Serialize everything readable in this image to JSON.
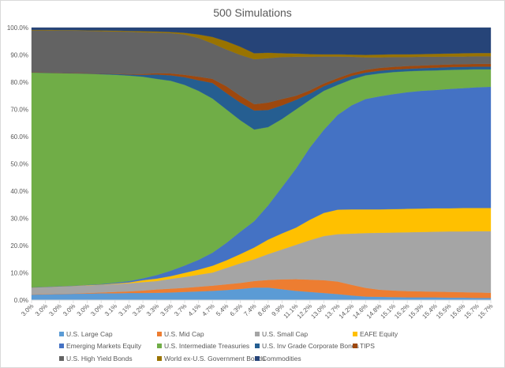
{
  "chart_data": {
    "type": "area",
    "stacking": "percent",
    "title": "500 Simulations",
    "xlabel": "",
    "ylabel": "",
    "ylim": [
      0,
      100
    ],
    "yticks": [
      "0.0%",
      "10.0%",
      "20.0%",
      "30.0%",
      "40.0%",
      "50.0%",
      "60.0%",
      "70.0%",
      "80.0%",
      "90.0%",
      "100.0%"
    ],
    "grid": true,
    "legend_position": "bottom",
    "categories": [
      "3.0%",
      "3.0%",
      "3.0%",
      "3.0%",
      "3.0%",
      "3.0%",
      "3.1%",
      "3.1%",
      "3.2%",
      "3.3%",
      "3.5%",
      "3.7%",
      "4.1%",
      "4.7%",
      "5.4%",
      "6.3%",
      "7.4%",
      "8.6%",
      "9.9%",
      "11.1%",
      "12.2%",
      "13.0%",
      "13.7%",
      "14.2%",
      "14.6%",
      "14.8%",
      "15.1%",
      "15.2%",
      "15.3%",
      "15.4%",
      "15.5%",
      "15.6%",
      "15.7%",
      "15.7%"
    ],
    "series": [
      {
        "name": "U.S. Large Cap",
        "color": "#5B9BD5",
        "values": [
          2.0,
          2.1,
          2.2,
          2.3,
          2.4,
          2.5,
          2.5,
          2.6,
          2.6,
          2.7,
          2.8,
          3.0,
          3.2,
          3.4,
          3.7,
          4.1,
          4.6,
          4.6,
          4.0,
          3.4,
          3.0,
          2.6,
          2.2,
          1.7,
          1.3,
          1.2,
          1.1,
          1.0,
          1.0,
          1.0,
          0.9,
          0.9,
          0.8,
          0.8
        ]
      },
      {
        "name": "U.S. Mid Cap",
        "color": "#ED7D31",
        "values": [
          0.1,
          0.1,
          0.1,
          0.1,
          0.2,
          0.3,
          0.5,
          0.6,
          0.9,
          1.2,
          1.4,
          1.5,
          1.7,
          1.9,
          2.1,
          2.2,
          2.4,
          2.8,
          3.6,
          4.3,
          4.5,
          4.7,
          4.6,
          3.9,
          3.2,
          2.6,
          2.4,
          2.3,
          2.2,
          2.1,
          2.1,
          2.0,
          2.0,
          1.9
        ]
      },
      {
        "name": "U.S. Small Cap",
        "color": "#A5A5A5",
        "values": [
          2.5,
          2.6,
          2.7,
          2.8,
          2.8,
          2.8,
          2.9,
          3.0,
          3.1,
          3.1,
          3.6,
          4.0,
          4.4,
          4.8,
          6.0,
          7.2,
          8.0,
          9.5,
          11.0,
          12.6,
          14.5,
          16.2,
          17.4,
          18.8,
          20.1,
          20.9,
          21.3,
          21.6,
          21.8,
          22.0,
          22.2,
          22.3,
          22.5,
          22.6
        ]
      },
      {
        "name": "EAFE Equity",
        "color": "#FFC000",
        "values": [
          0.0,
          0.0,
          0.0,
          0.0,
          0.1,
          0.1,
          0.2,
          0.3,
          0.7,
          0.9,
          1.0,
          1.5,
          1.9,
          2.5,
          2.8,
          3.4,
          4.3,
          5.3,
          5.9,
          6.3,
          7.5,
          8.5,
          9.0,
          8.9,
          8.7,
          8.6,
          8.6,
          8.6,
          8.6,
          8.6,
          8.5,
          8.6,
          8.5,
          8.5
        ]
      },
      {
        "name": "Emerging Markets Equity",
        "color": "#4472C4",
        "values": [
          0.1,
          0.1,
          0.1,
          0.1,
          0.1,
          0.2,
          0.3,
          0.5,
          0.7,
          1.3,
          2.0,
          2.7,
          3.6,
          4.8,
          6.4,
          8.2,
          9.7,
          12.6,
          17.0,
          21.7,
          26.5,
          30.5,
          34.8,
          38.2,
          40.5,
          41.5,
          42.2,
          42.8,
          43.2,
          43.4,
          43.8,
          44.0,
          44.3,
          44.5
        ]
      },
      {
        "name": "U.S. Intermediate Treasuries",
        "color": "#70AD47",
        "values": [
          78.8,
          78.5,
          78.2,
          77.9,
          77.5,
          77.0,
          76.3,
          75.4,
          74.0,
          72.0,
          69.7,
          66.3,
          62.0,
          56.6,
          49.0,
          40.9,
          33.6,
          28.7,
          25.0,
          21.7,
          17.5,
          14.3,
          11.0,
          9.5,
          8.7,
          8.4,
          8.1,
          7.7,
          7.4,
          7.2,
          7.0,
          6.8,
          6.6,
          6.4
        ]
      },
      {
        "name": "U.S. Inv Grade Corporate Bonds",
        "color": "#255E91",
        "values": [
          0.1,
          0.1,
          0.1,
          0.1,
          0.1,
          0.2,
          0.3,
          0.4,
          0.7,
          1.6,
          2.0,
          2.8,
          3.9,
          5.7,
          6.0,
          6.5,
          7.0,
          6.3,
          5.0,
          3.5,
          2.3,
          1.7,
          1.5,
          1.3,
          1.0,
          1.0,
          0.9,
          0.9,
          0.9,
          1.0,
          1.0,
          1.0,
          1.0,
          1.0
        ]
      },
      {
        "name": "TIPS",
        "color": "#9E480E",
        "values": [
          0.1,
          0.1,
          0.1,
          0.1,
          0.1,
          0.1,
          0.1,
          0.2,
          0.3,
          0.5,
          0.7,
          0.9,
          1.3,
          1.5,
          2.5,
          2.5,
          2.3,
          2.7,
          2.3,
          1.5,
          1.2,
          1.0,
          1.0,
          1.0,
          1.0,
          1.0,
          1.0,
          1.0,
          1.0,
          1.0,
          1.0,
          1.0,
          1.0,
          1.0
        ]
      },
      {
        "name": "U.S. High Yield Bonds",
        "color": "#636363",
        "values": [
          15.3,
          15.4,
          15.4,
          15.5,
          15.5,
          15.5,
          15.5,
          15.5,
          15.3,
          14.9,
          14.8,
          14.8,
          14.2,
          13.0,
          13.5,
          15.0,
          16.5,
          16.3,
          15.4,
          14.3,
          12.3,
          9.9,
          7.9,
          6.0,
          4.6,
          3.9,
          3.6,
          3.3,
          3.2,
          3.0,
          2.9,
          2.8,
          2.8,
          2.8
        ]
      },
      {
        "name": "World ex-U.S. Government Bonds",
        "color": "#997300",
        "values": [
          0.2,
          0.2,
          0.2,
          0.2,
          0.2,
          0.3,
          0.3,
          0.3,
          0.4,
          0.4,
          0.4,
          0.6,
          1.3,
          2.4,
          3.0,
          3.0,
          2.2,
          2.0,
          1.4,
          1.2,
          1.0,
          0.8,
          0.8,
          0.8,
          0.9,
          1.0,
          1.0,
          1.0,
          1.0,
          1.1,
          1.1,
          1.2,
          1.2,
          1.2
        ]
      },
      {
        "name": "Commodities",
        "color": "#264478",
        "values": [
          0.8,
          0.8,
          0.9,
          0.9,
          1.0,
          1.0,
          1.1,
          1.2,
          1.3,
          1.4,
          1.6,
          1.9,
          2.5,
          3.4,
          5.0,
          7.0,
          9.4,
          9.2,
          9.4,
          9.5,
          9.7,
          9.8,
          9.8,
          9.9,
          10.0,
          9.9,
          9.8,
          9.8,
          9.7,
          9.6,
          9.5,
          9.4,
          9.3,
          9.3
        ]
      }
    ]
  }
}
